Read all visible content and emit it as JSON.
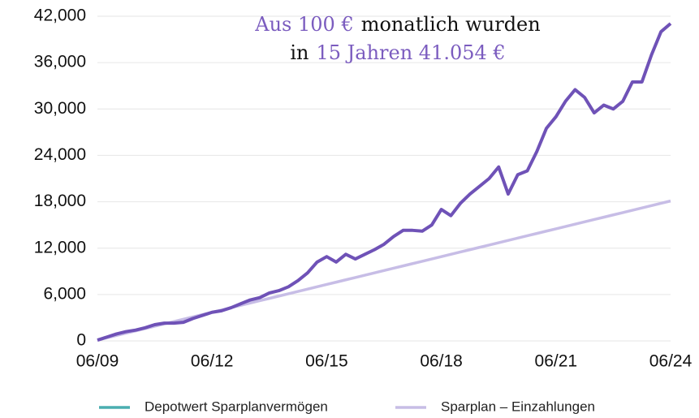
{
  "chart_data": {
    "type": "line",
    "annotation": [
      [
        {
          "text": "Aus 100 €",
          "color": "#7b5cbf"
        },
        {
          "text": "monatlich wurden",
          "color": "#111111"
        }
      ],
      [
        {
          "text": "in",
          "color": "#111111"
        },
        {
          "text": "15 Jahren 41.054 €",
          "color": "#7b5cbf"
        }
      ]
    ],
    "categories": [
      "06/09",
      null,
      null,
      null,
      null,
      null,
      null,
      null,
      null,
      null,
      null,
      null,
      "06/12",
      null,
      null,
      null,
      null,
      null,
      null,
      null,
      null,
      null,
      null,
      null,
      "06/15",
      null,
      null,
      null,
      null,
      null,
      null,
      null,
      null,
      null,
      null,
      null,
      "06/18",
      null,
      null,
      null,
      null,
      null,
      null,
      null,
      null,
      null,
      null,
      null,
      "06/21",
      null,
      null,
      null,
      null,
      null,
      null,
      null,
      null,
      null,
      null,
      null,
      "06/24"
    ],
    "series": [
      {
        "name": "Depotwert Sparplanvermögen",
        "color": "#6f52b7",
        "legend_color": "#4aaeb0",
        "values": [
          100,
          500,
          900,
          1200,
          1400,
          1700,
          2100,
          2300,
          2300,
          2400,
          2900,
          3300,
          3700,
          3900,
          4300,
          4800,
          5300,
          5600,
          6200,
          6500,
          7000,
          7800,
          8800,
          10200,
          10900,
          10200,
          11200,
          10600,
          11200,
          11800,
          12500,
          13500,
          14300,
          14300,
          14200,
          15000,
          17000,
          16200,
          17800,
          19000,
          20000,
          21000,
          22500,
          19000,
          21500,
          22000,
          24500,
          27500,
          29000,
          31000,
          32500,
          31500,
          29500,
          30500,
          30000,
          31000,
          33500,
          33500,
          37000,
          40000,
          41054
        ]
      },
      {
        "name": "Sparplan – Einzahlungen",
        "color": "#c7bde6",
        "legend_color": "#c7bde6",
        "values": [
          100,
          400,
          700,
          1000,
          1300,
          1600,
          1900,
          2200,
          2500,
          2800,
          3100,
          3400,
          3700,
          4000,
          4300,
          4600,
          4900,
          5200,
          5500,
          5800,
          6100,
          6400,
          6700,
          7000,
          7300,
          7600,
          7900,
          8200,
          8500,
          8800,
          9100,
          9400,
          9700,
          10000,
          10300,
          10600,
          10900,
          11200,
          11500,
          11800,
          12100,
          12400,
          12700,
          13000,
          13300,
          13600,
          13900,
          14200,
          14500,
          14800,
          15100,
          15400,
          15700,
          16000,
          16300,
          16600,
          16900,
          17200,
          17500,
          17800,
          18100
        ]
      }
    ],
    "ylim": [
      0,
      42000
    ],
    "yticks": [
      0,
      {
        "value": 6000,
        "label": "6,000"
      },
      {
        "value": 12000,
        "label": "12,000"
      },
      {
        "value": 18000,
        "label": "18,000"
      },
      {
        "value": 24000,
        "label": "24,000"
      },
      {
        "value": 30000,
        "label": "30,000"
      },
      {
        "value": 36000,
        "label": "36,000"
      },
      {
        "value": 42000,
        "label": "42,000"
      }
    ],
    "grid": true
  }
}
